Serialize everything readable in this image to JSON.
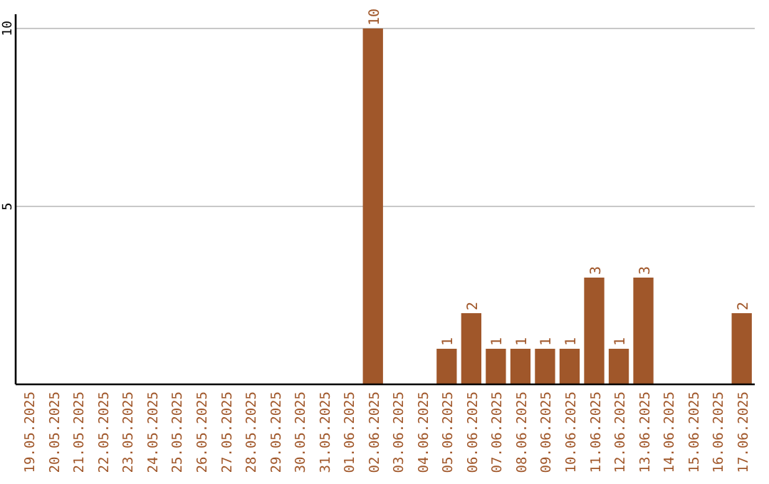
{
  "chart_data": {
    "type": "bar",
    "categories": [
      "19.05.2025",
      "20.05.2025",
      "21.05.2025",
      "22.05.2025",
      "23.05.2025",
      "24.05.2025",
      "25.05.2025",
      "26.05.2025",
      "27.05.2025",
      "28.05.2025",
      "29.05.2025",
      "30.05.2025",
      "31.05.2025",
      "01.06.2025",
      "02.06.2025",
      "03.06.2025",
      "04.06.2025",
      "05.06.2025",
      "06.06.2025",
      "07.06.2025",
      "08.06.2025",
      "09.06.2025",
      "10.06.2025",
      "11.06.2025",
      "12.06.2025",
      "13.06.2025",
      "14.06.2025",
      "15.06.2025",
      "16.06.2025",
      "17.06.2025"
    ],
    "values": [
      0,
      0,
      0,
      0,
      0,
      0,
      0,
      0,
      0,
      0,
      0,
      0,
      0,
      0,
      10,
      0,
      0,
      1,
      2,
      1,
      1,
      1,
      1,
      3,
      1,
      3,
      0,
      0,
      0,
      2
    ],
    "value_labels": [
      null,
      null,
      null,
      null,
      null,
      null,
      null,
      null,
      null,
      null,
      null,
      null,
      null,
      null,
      "10",
      null,
      null,
      "1",
      "2",
      "1",
      "1",
      "1",
      "1",
      "3",
      "1",
      "3",
      null,
      null,
      null,
      "2"
    ],
    "color": "#a0572a",
    "ylim": [
      0,
      10.4
    ],
    "yticks": [
      5,
      10
    ],
    "grid": "y"
  }
}
